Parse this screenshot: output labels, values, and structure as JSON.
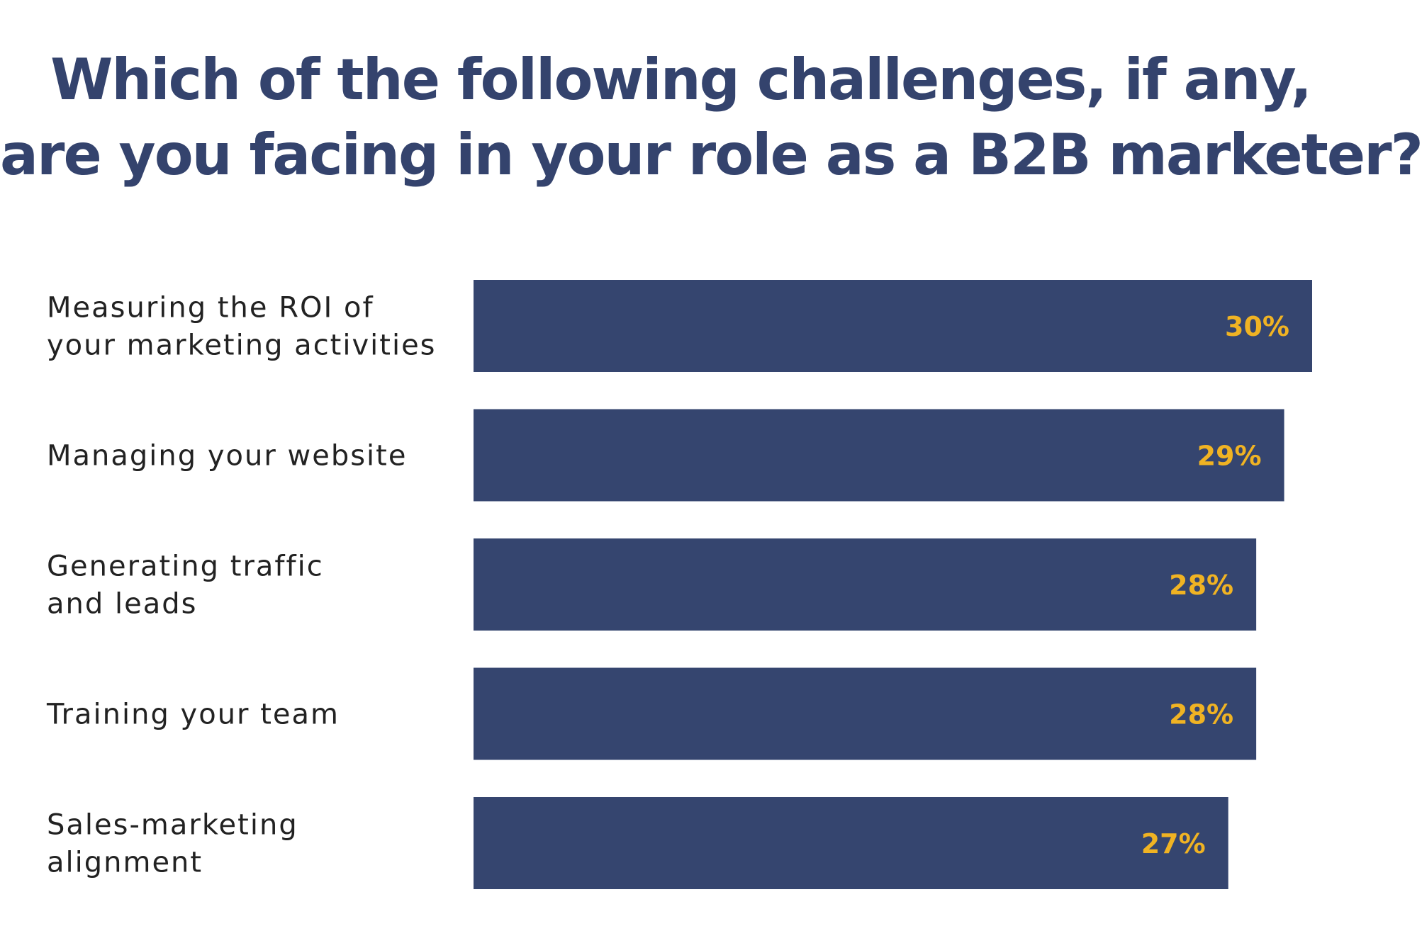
{
  "chart_data": {
    "type": "bar",
    "orientation": "horizontal",
    "title_lines": [
      "Which of the following challenges, if any,",
      "are you facing in your role as a B2B marketer?"
    ],
    "categories": [
      [
        "Measuring the ROI of",
        "your marketing activities"
      ],
      [
        "Managing your website"
      ],
      [
        "Generating traffic",
        "and leads"
      ],
      [
        "Training your team"
      ],
      [
        "Sales-marketing",
        "alignment"
      ]
    ],
    "values": [
      30,
      29,
      28,
      28,
      27
    ],
    "value_labels": [
      "30%",
      "29%",
      "28%",
      "28%",
      "27%"
    ],
    "unit": "%",
    "grid": false,
    "legend": "none",
    "colors": {
      "bar": "#35456f",
      "value_label": "#f0b323",
      "title": "#34436d",
      "category_label": "#222222"
    }
  }
}
